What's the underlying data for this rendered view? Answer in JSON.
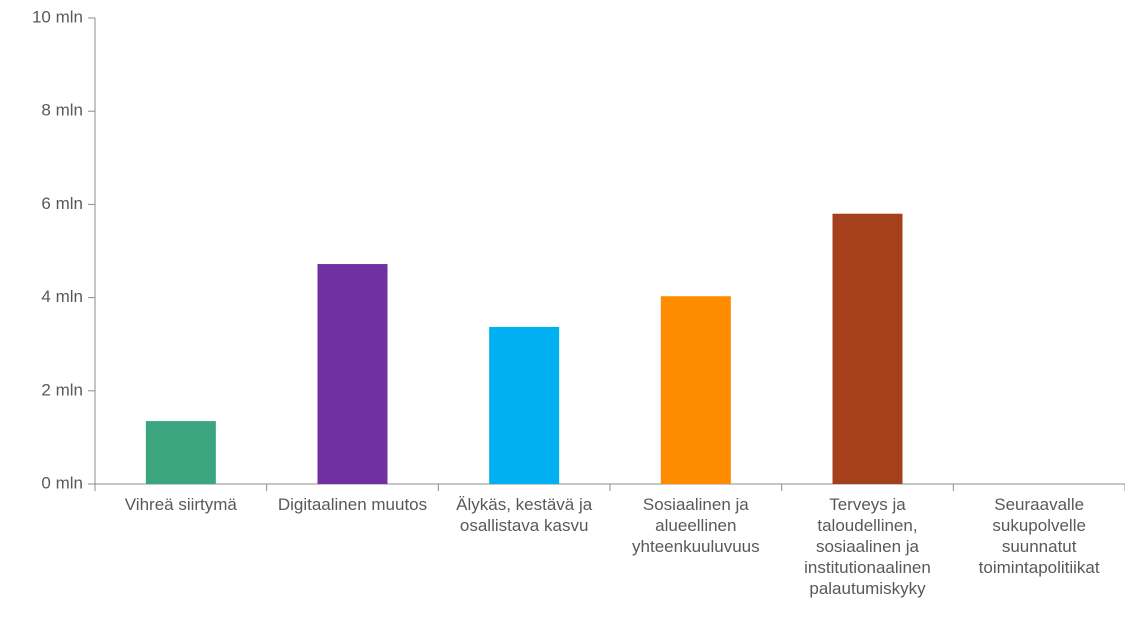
{
  "chart_data": {
    "type": "bar",
    "categories": [
      "Vihreä siirtymä",
      "Digitaalinen muutos",
      "Älykäs, kestävä ja osallistava kasvu",
      "Sosiaalinen ja alueellinen yhteenkuuluvuus",
      "Terveys ja taloudellinen, sosiaalinen ja institutionaalinen palautumiskyky",
      "Seuraavalle sukupolvelle suunnatut toimintapolitiikat"
    ],
    "values": [
      1.35,
      4.72,
      3.37,
      4.03,
      5.8,
      0
    ],
    "colors": [
      "#3aa57f",
      "#7030a0",
      "#00b0f0",
      "#ff8c00",
      "#a5401c",
      "#808080"
    ],
    "ylim": [
      0,
      10
    ],
    "yticks": [
      {
        "value": 0,
        "label": "0 mln"
      },
      {
        "value": 2,
        "label": "2 mln"
      },
      {
        "value": 4,
        "label": "4 mln"
      },
      {
        "value": 6,
        "label": "6 mln"
      },
      {
        "value": 8,
        "label": "8 mln"
      },
      {
        "value": 10,
        "label": "10 mln"
      }
    ],
    "grid": false
  }
}
